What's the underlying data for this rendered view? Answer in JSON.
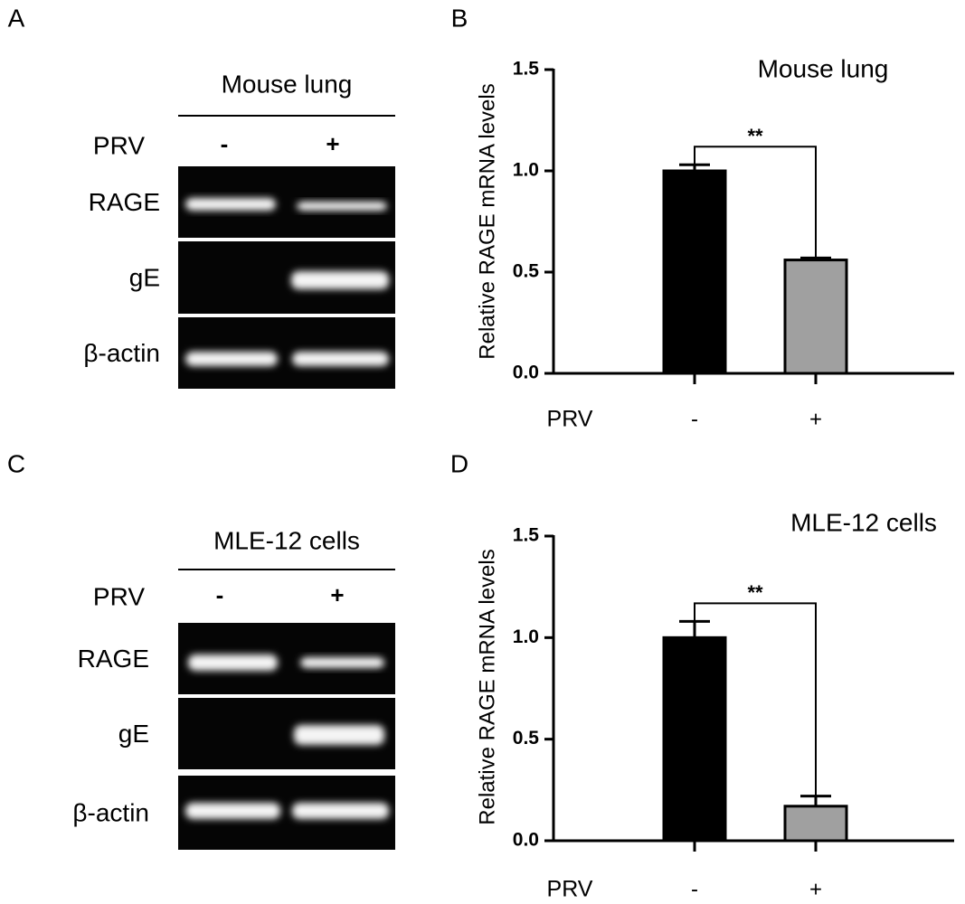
{
  "panels": [
    {
      "label": "A",
      "title": "Mouse lung",
      "condition": "PRV",
      "lanes": [
        "-",
        "+"
      ],
      "rows": [
        "RAGE",
        "gE",
        "β-actin"
      ]
    },
    {
      "label": "C",
      "title": "MLE-12 cells",
      "condition": "PRV",
      "lanes": [
        "-",
        "+"
      ],
      "rows": [
        "RAGE",
        "gE",
        "β-actin"
      ]
    }
  ],
  "chart_data": [
    {
      "type": "bar",
      "panel_label": "B",
      "title": "Mouse lung",
      "y_label": "Relative RAGE mRNA levels",
      "x_label": "PRV",
      "categories": [
        "-",
        "+"
      ],
      "values": [
        1.0,
        0.56
      ],
      "errors": [
        0.03,
        0.01
      ],
      "colors": [
        "#000000",
        "#a0a0a0"
      ],
      "annotation": "**",
      "ylim": [
        0,
        1.5
      ],
      "yticks": [
        {
          "value": 0,
          "label": "0.0"
        },
        0.5,
        {
          "value": 1,
          "label": "1.0"
        },
        1.5
      ]
    },
    {
      "type": "bar",
      "panel_label": "D",
      "title": "MLE-12 cells",
      "y_label": "Relative RAGE mRNA levels",
      "x_label": "PRV",
      "categories": [
        "-",
        "+"
      ],
      "values": [
        1.0,
        0.17
      ],
      "errors": [
        0.08,
        0.05
      ],
      "colors": [
        "#000000",
        "#a0a0a0"
      ],
      "annotation": "**",
      "ylim": [
        0,
        1.5
      ],
      "yticks": [
        {
          "value": 0,
          "label": "0.0"
        },
        0.5,
        {
          "value": 1,
          "label": "1.0"
        },
        1.5
      ]
    }
  ]
}
